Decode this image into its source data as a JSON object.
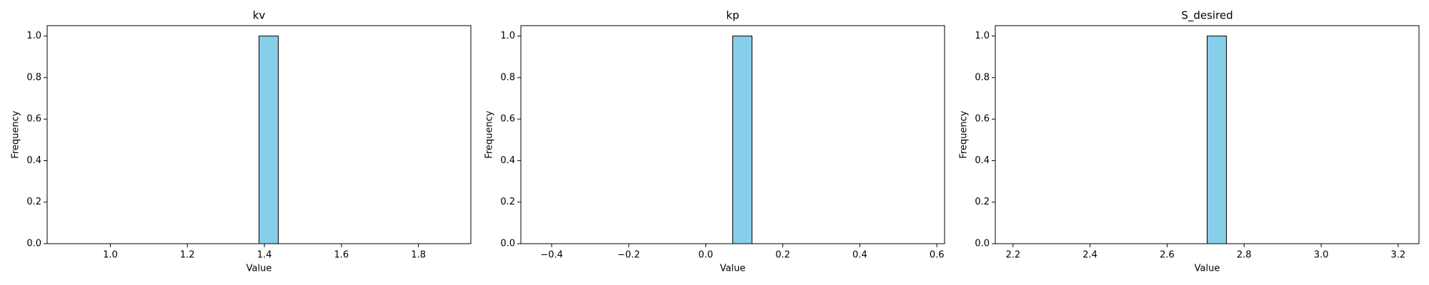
{
  "chart_data": [
    {
      "type": "histogram",
      "title": "kv",
      "xlabel": "Value",
      "ylabel": "Frequency",
      "color": "#87ceeb",
      "bins": [
        0.886,
        0.936,
        0.986,
        1.036,
        1.086,
        1.136,
        1.186,
        1.236,
        1.286,
        1.336,
        1.386,
        1.436,
        1.486,
        1.536,
        1.586,
        1.636,
        1.686,
        1.736,
        1.786,
        1.836,
        1.886
      ],
      "counts": [
        0,
        0,
        0,
        0,
        0,
        0,
        0,
        0,
        0,
        0,
        1,
        0,
        0,
        0,
        0,
        0,
        0,
        0,
        0,
        0
      ],
      "xlim": [
        0.836,
        1.936
      ],
      "ylim": [
        0,
        1.05
      ],
      "xticks": [
        {
          "value": 1.0,
          "label": "1.0"
        },
        1.2,
        1.4,
        1.6,
        1.8
      ],
      "yticks": [
        {
          "value": 0,
          "label": "0.0"
        },
        0.2,
        0.4,
        0.6,
        0.8,
        {
          "value": 1,
          "label": "1.0"
        }
      ]
    },
    {
      "type": "histogram",
      "title": "kp",
      "xlabel": "Value",
      "ylabel": "Frequency",
      "color": "#87ceeb",
      "bins": [
        -0.43,
        -0.38,
        -0.33,
        -0.28,
        -0.23,
        -0.18,
        -0.13,
        -0.08,
        -0.03,
        0.02,
        0.07,
        0.12,
        0.17,
        0.22,
        0.27,
        0.32,
        0.37,
        0.42,
        0.47,
        0.52,
        0.57
      ],
      "counts": [
        0,
        0,
        0,
        0,
        0,
        0,
        0,
        0,
        0,
        0,
        1,
        0,
        0,
        0,
        0,
        0,
        0,
        0,
        0,
        0
      ],
      "xlim": [
        -0.48,
        0.62
      ],
      "ylim": [
        0,
        1.05
      ],
      "xticks": [
        {
          "value": -0.4,
          "label": "−0.4"
        },
        {
          "value": -0.2,
          "label": "−0.2"
        },
        {
          "value": 0,
          "label": "0.0"
        },
        0.2,
        0.4,
        0.6
      ],
      "yticks": [
        {
          "value": 0,
          "label": "0.0"
        },
        0.2,
        0.4,
        0.6,
        0.8,
        {
          "value": 1,
          "label": "1.0"
        }
      ]
    },
    {
      "type": "histogram",
      "title": "S_desired",
      "xlabel": "Value",
      "ylabel": "Frequency",
      "color": "#87ceeb",
      "bins": [
        2.204,
        2.254,
        2.304,
        2.354,
        2.404,
        2.454,
        2.504,
        2.554,
        2.604,
        2.654,
        2.704,
        2.754,
        2.804,
        2.854,
        2.904,
        2.954,
        3.004,
        3.054,
        3.104,
        3.154,
        3.204
      ],
      "counts": [
        0,
        0,
        0,
        0,
        0,
        0,
        0,
        0,
        0,
        0,
        1,
        0,
        0,
        0,
        0,
        0,
        0,
        0,
        0,
        0
      ],
      "xlim": [
        2.154,
        3.254
      ],
      "ylim": [
        0,
        1.05
      ],
      "xticks": [
        2.2,
        2.4,
        2.6,
        2.8,
        {
          "value": 3,
          "label": "3.0"
        },
        3.2
      ],
      "yticks": [
        {
          "value": 0,
          "label": "0.0"
        },
        0.2,
        0.4,
        0.6,
        0.8,
        {
          "value": 1,
          "label": "1.0"
        }
      ]
    }
  ]
}
